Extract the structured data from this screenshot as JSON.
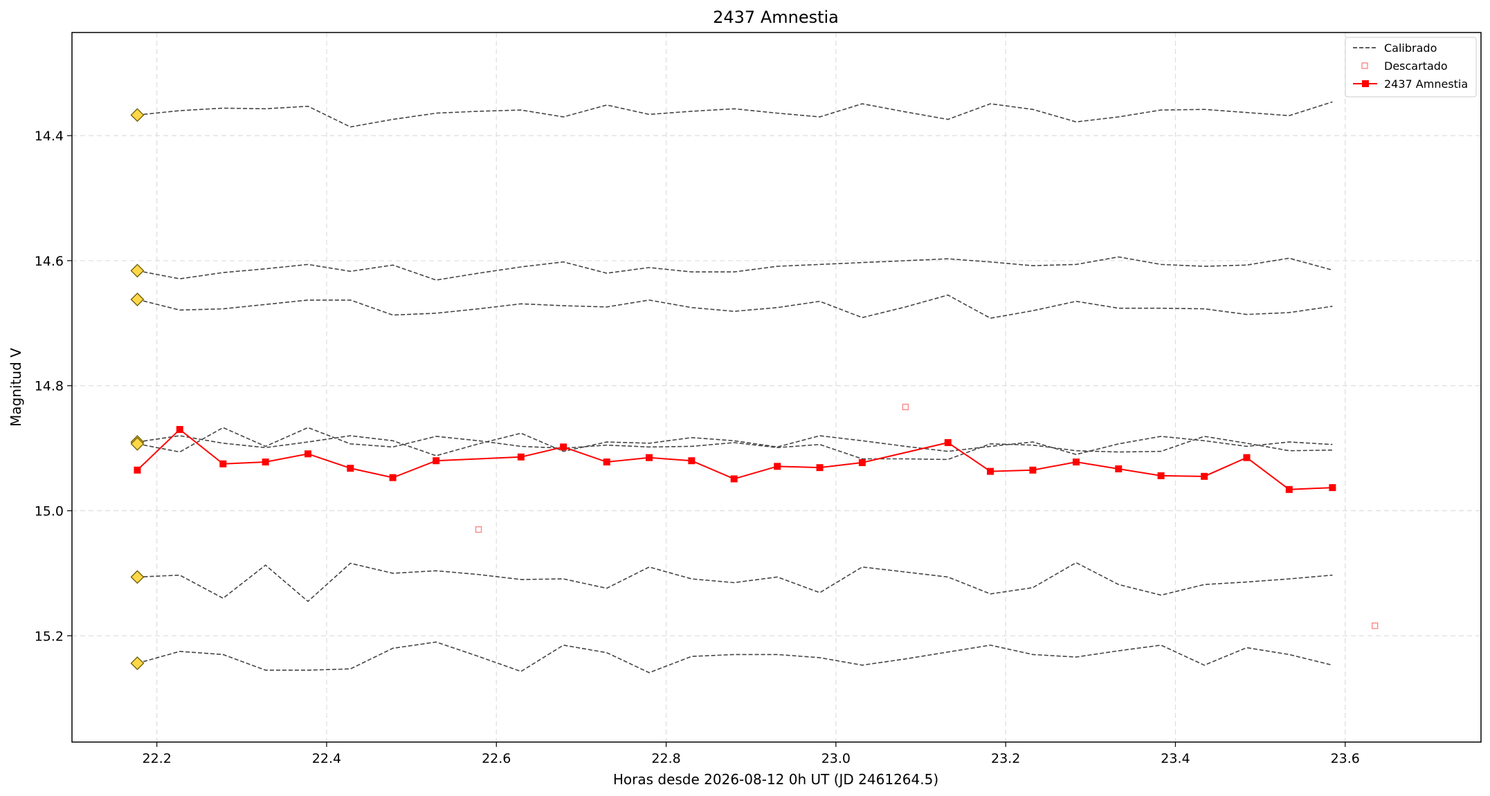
{
  "chart_data": {
    "type": "line",
    "title": "2437 Amnestia",
    "xlabel": "Horas desde 2026-08-12 0h UT (JD 2461264.5)",
    "ylabel": "Magnitud V",
    "xlim": [
      22.1,
      23.76
    ],
    "ylim": [
      15.37,
      14.235
    ],
    "y_inverted": true,
    "x_ticks": [
      "22.2",
      "22.4",
      "22.6",
      "22.8",
      "23.0",
      "23.2",
      "23.4",
      "23.6"
    ],
    "y_ticks": [
      "14.4",
      "14.6",
      "14.8",
      "15.0",
      "15.2"
    ],
    "grid": true,
    "legend_position": "top-right",
    "legend": [
      "Calibrado",
      "Descartado",
      "2437 Amnestia"
    ],
    "x": [
      22.177,
      22.227,
      22.278,
      22.328,
      22.378,
      22.428,
      22.478,
      22.529,
      22.579,
      22.629,
      22.679,
      22.73,
      22.78,
      22.83,
      22.88,
      22.931,
      22.981,
      23.031,
      23.082,
      23.132,
      23.182,
      23.232,
      23.283,
      23.333,
      23.383,
      23.434,
      23.484,
      23.534,
      23.585
    ],
    "comparison_series": [
      {
        "values": [
          14.367,
          14.36,
          14.356,
          14.357,
          14.353,
          14.386,
          14.374,
          14.364,
          14.361,
          14.359,
          14.37,
          14.351,
          14.366,
          14.361,
          14.357,
          14.364,
          14.37,
          14.349,
          14.362,
          14.374,
          14.349,
          14.358,
          14.378,
          14.37,
          14.359,
          14.358,
          14.363,
          14.368,
          14.346
        ]
      },
      {
        "values": [
          14.616,
          14.629,
          14.619,
          14.613,
          14.606,
          14.617,
          14.607,
          14.631,
          14.62,
          14.61,
          14.602,
          14.62,
          14.611,
          14.618,
          14.618,
          14.609,
          14.606,
          14.603,
          14.6,
          14.597,
          14.602,
          14.608,
          14.606,
          14.594,
          14.606,
          14.609,
          14.607,
          14.596,
          14.615
        ]
      },
      {
        "values": [
          14.662,
          14.679,
          14.677,
          14.67,
          14.663,
          14.663,
          14.687,
          14.684,
          14.677,
          14.669,
          14.672,
          14.674,
          14.663,
          14.675,
          14.681,
          14.675,
          14.665,
          14.691,
          14.674,
          14.655,
          14.692,
          14.68,
          14.665,
          14.676,
          14.676,
          14.677,
          14.686,
          14.683,
          14.673
        ]
      },
      {
        "values": [
          14.89,
          14.88,
          14.892,
          14.899,
          14.89,
          14.88,
          14.888,
          14.912,
          14.893,
          14.876,
          14.905,
          14.89,
          14.892,
          14.883,
          14.888,
          14.898,
          14.88,
          14.888,
          14.897,
          14.905,
          14.897,
          14.89,
          14.91,
          14.893,
          14.881,
          14.888,
          14.897,
          14.89,
          14.894
        ]
      },
      {
        "values": [
          14.893,
          14.906,
          14.867,
          14.897,
          14.867,
          14.893,
          14.898,
          14.881,
          14.888,
          14.897,
          14.9,
          14.895,
          14.898,
          14.897,
          14.891,
          14.899,
          14.894,
          14.917,
          14.917,
          14.918,
          14.893,
          14.895,
          14.904,
          14.906,
          14.905,
          14.881,
          14.892,
          14.904,
          14.903
        ]
      },
      {
        "values": [
          15.106,
          15.103,
          15.14,
          15.087,
          15.145,
          15.084,
          15.1,
          15.096,
          15.102,
          15.11,
          15.109,
          15.124,
          15.09,
          15.109,
          15.115,
          15.106,
          15.131,
          15.09,
          15.098,
          15.106,
          15.133,
          15.123,
          15.083,
          15.118,
          15.135,
          15.118,
          15.114,
          15.109,
          15.103
        ]
      },
      {
        "values": [
          15.244,
          15.225,
          15.23,
          15.255,
          15.255,
          15.253,
          15.22,
          15.21,
          15.233,
          15.257,
          15.215,
          15.227,
          15.259,
          15.233,
          15.23,
          15.23,
          15.235,
          15.247,
          15.237,
          15.226,
          15.215,
          15.23,
          15.234,
          15.224,
          15.215,
          15.247,
          15.219,
          15.23,
          15.247
        ]
      }
    ],
    "comparison_markers_x": 22.177,
    "target_series": {
      "name": "2437 Amnestia",
      "x": [
        22.177,
        22.227,
        22.278,
        22.328,
        22.378,
        22.428,
        22.478,
        22.529,
        22.629,
        22.679,
        22.73,
        22.78,
        22.83,
        22.88,
        22.931,
        22.981,
        23.031,
        23.132,
        23.182,
        23.232,
        23.283,
        23.333,
        23.383,
        23.434,
        23.484,
        23.534,
        23.585
      ],
      "values": [
        14.935,
        14.87,
        14.925,
        14.922,
        14.909,
        14.932,
        14.947,
        14.92,
        14.914,
        14.898,
        14.922,
        14.915,
        14.92,
        14.949,
        14.929,
        14.931,
        14.923,
        14.891,
        14.937,
        14.935,
        14.922,
        14.933,
        14.944,
        14.945,
        14.915,
        14.966,
        14.963
      ]
    },
    "discarded_points": [
      {
        "x": 22.579,
        "y": 15.03
      },
      {
        "x": 23.082,
        "y": 14.834
      },
      {
        "x": 23.635,
        "y": 15.184
      }
    ],
    "colors": {
      "comparison_line": "#444444",
      "comparison_marker": "#ffd84a",
      "comparison_marker_edge": "#6b5a00",
      "target": "#ff0000",
      "discarded": "#ff8080",
      "grid": "#dddddd"
    }
  }
}
